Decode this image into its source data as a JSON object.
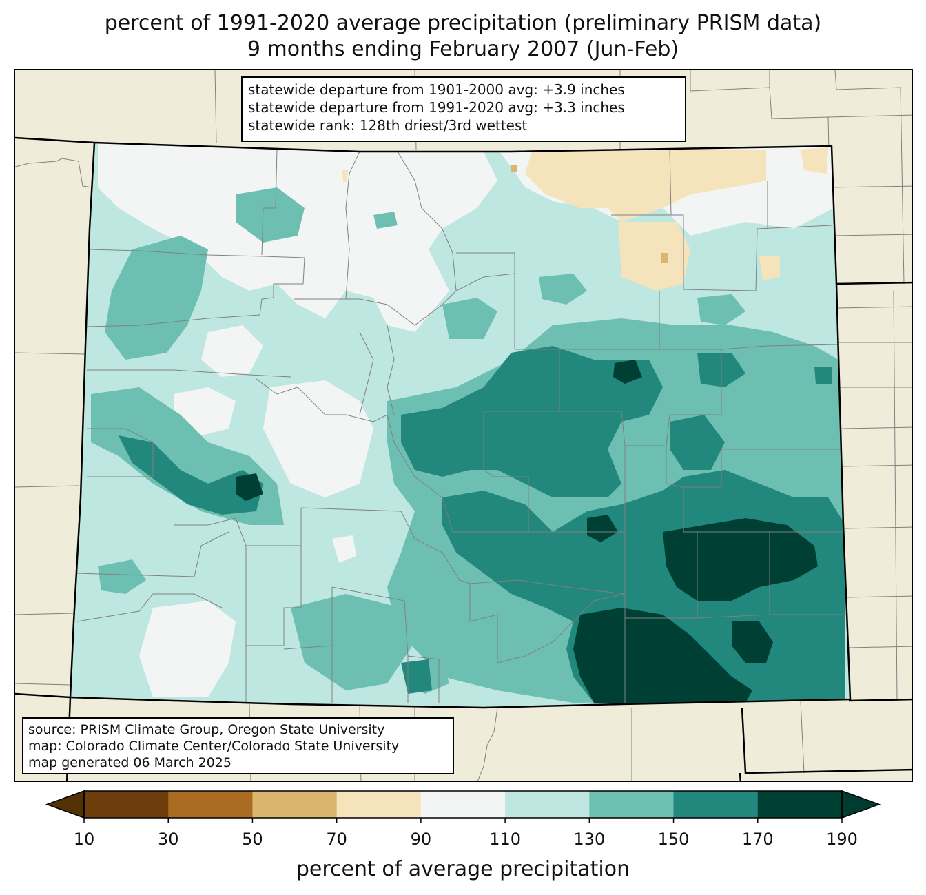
{
  "title": {
    "line1": "percent of 1991-2020 average precipitation (preliminary PRISM data)",
    "line2": "9 months ending February 2007 (Jun-Feb)"
  },
  "stats": {
    "line1": "statewide departure from 1901-2000 avg: +3.9 inches",
    "line2": "statewide departure from 1991-2020 avg: +3.3 inches",
    "line3": "statewide rank: 128th driest/3rd wettest"
  },
  "source": {
    "line1": "source: PRISM Climate Group, Oregon State University",
    "line2": "map: Colorado Climate Center/Colorado State University",
    "line3": "map generated 06 March 2025"
  },
  "colorbar": {
    "label": "percent of average precipitation",
    "ticks": [
      "10",
      "30",
      "50",
      "70",
      "90",
      "110",
      "130",
      "150",
      "170",
      "190"
    ],
    "colors": [
      "#6e3d0c",
      "#a96c22",
      "#d9b56e",
      "#f4e3bb",
      "#f3f5f4",
      "#bfe7e1",
      "#6dbfb2",
      "#22877c",
      "#004034"
    ],
    "under_color": "#543005",
    "over_color": "#003c30"
  },
  "map": {
    "background_color": "#efedda",
    "state_boundary_color": "#000000",
    "county_line_color": "#808080"
  }
}
